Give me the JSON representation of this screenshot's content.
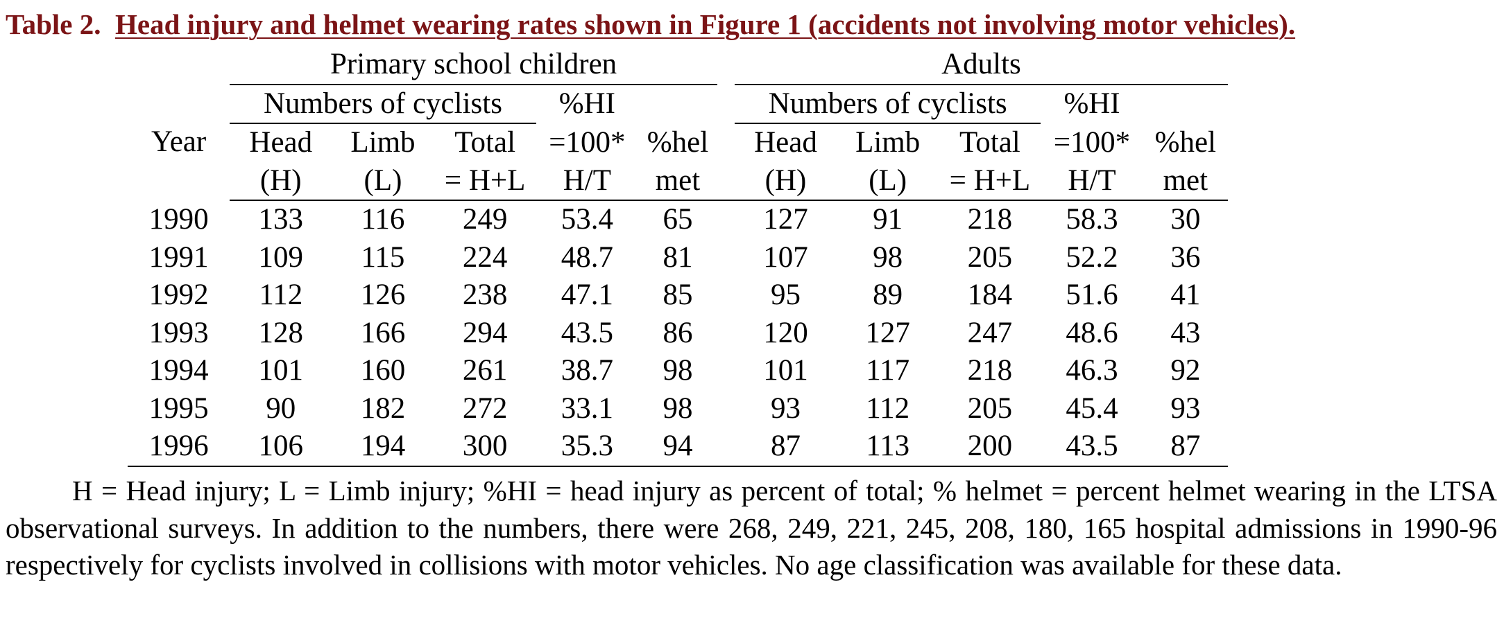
{
  "caption": {
    "label": "Table 2.",
    "title": "Head injury and helmet wearing rates shown in Figure 1 (accidents not involving motor vehicles)."
  },
  "table": {
    "group_headers": [
      "Primary school children",
      "Adults"
    ],
    "subgroup_header": "Numbers of cyclists",
    "pct_hi_header": "%HI",
    "year_header": "Year",
    "head_header": [
      "Head",
      "(H)"
    ],
    "limb_header": [
      "Limb",
      "(L)"
    ],
    "total_header": [
      "Total",
      "= H+L"
    ],
    "pct_hi_formula": [
      "=100*",
      "H/T"
    ],
    "helmet_header": [
      "%hel",
      "met"
    ],
    "rows": [
      {
        "year": "1990",
        "children": [
          "133",
          "116",
          "249",
          "53.4",
          "65"
        ],
        "adults": [
          "127",
          "91",
          "218",
          "58.3",
          "30"
        ]
      },
      {
        "year": "1991",
        "children": [
          "109",
          "115",
          "224",
          "48.7",
          "81"
        ],
        "adults": [
          "107",
          "98",
          "205",
          "52.2",
          "36"
        ]
      },
      {
        "year": "1992",
        "children": [
          "112",
          "126",
          "238",
          "47.1",
          "85"
        ],
        "adults": [
          "95",
          "89",
          "184",
          "51.6",
          "41"
        ]
      },
      {
        "year": "1993",
        "children": [
          "128",
          "166",
          "294",
          "43.5",
          "86"
        ],
        "adults": [
          "120",
          "127",
          "247",
          "48.6",
          "43"
        ]
      },
      {
        "year": "1994",
        "children": [
          "101",
          "160",
          "261",
          "38.7",
          "98"
        ],
        "adults": [
          "101",
          "117",
          "218",
          "46.3",
          "92"
        ]
      },
      {
        "year": "1995",
        "children": [
          "90",
          "182",
          "272",
          "33.1",
          "98"
        ],
        "adults": [
          "93",
          "112",
          "205",
          "45.4",
          "93"
        ]
      },
      {
        "year": "1996",
        "children": [
          "106",
          "194",
          "300",
          "35.3",
          "94"
        ],
        "adults": [
          "87",
          "113",
          "200",
          "43.5",
          "87"
        ]
      }
    ]
  },
  "notes": "H = Head injury; L = Limb injury; %HI = head injury as percent of total; % helmet = percent helmet wearing in the LTSA observational surveys.  In addition to the numbers, there were 268, 249, 221, 245, 208, 180, 165 hospital admissions in 1990-96 respectively for cyclists involved in collisions with motor vehicles.  No age classification was available for these data."
}
